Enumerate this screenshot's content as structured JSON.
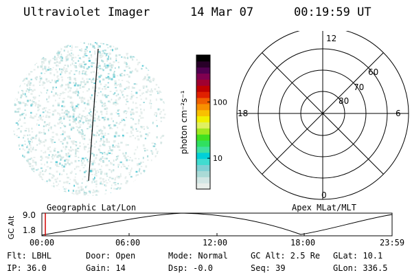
{
  "header": {
    "instrument": "Ultraviolet Imager",
    "date": "14 Mar 07",
    "time": "00:19:59 UT"
  },
  "colorbar": {
    "unit_label": "photon cm⁻²s⁻¹",
    "ticks": [
      "100",
      "10"
    ],
    "tick_levels": [
      0.65,
      0.23
    ],
    "colors": [
      "#e8eeea",
      "#d2e6e4",
      "#aadad6",
      "#7fd0d4",
      "#40dcd0",
      "#00d0d8",
      "#40e0a0",
      "#30e060",
      "#40e020",
      "#a0e820",
      "#e0f060",
      "#f0f000",
      "#f8c000",
      "#f89000",
      "#f06000",
      "#e02000",
      "#c00000",
      "#a00030",
      "#800050",
      "#500050",
      "#280028",
      "#000000"
    ]
  },
  "polar": {
    "labels": {
      "top": "12",
      "left": "18",
      "right": "6",
      "bottom": "0",
      "r60": "60",
      "r70": "70",
      "r80": "80"
    }
  },
  "timeline": {
    "left_label": "Geographic Lat/Lon",
    "right_label": "Apex MLat/MLT",
    "axis_label": "GC Alt",
    "y_ticks": [
      "9.0",
      "1.8"
    ],
    "x_ticks": [
      "00:00",
      "06:00",
      "12:00",
      "18:00",
      "23:59"
    ],
    "orbit_marker_fraction": 0.01
  },
  "info": {
    "flt": "Flt: LBHL",
    "ip": "IP: 36.0",
    "door": "Door: Open",
    "gain": "Gain: 14",
    "mode": "Mode: Normal",
    "dsp": "Dsp:   -0.0",
    "gcalt": "GC Alt: 2.5 Re",
    "seq": "Seq: 39",
    "glat": "GLat:  10.1",
    "glon": "GLon: 336.5"
  }
}
